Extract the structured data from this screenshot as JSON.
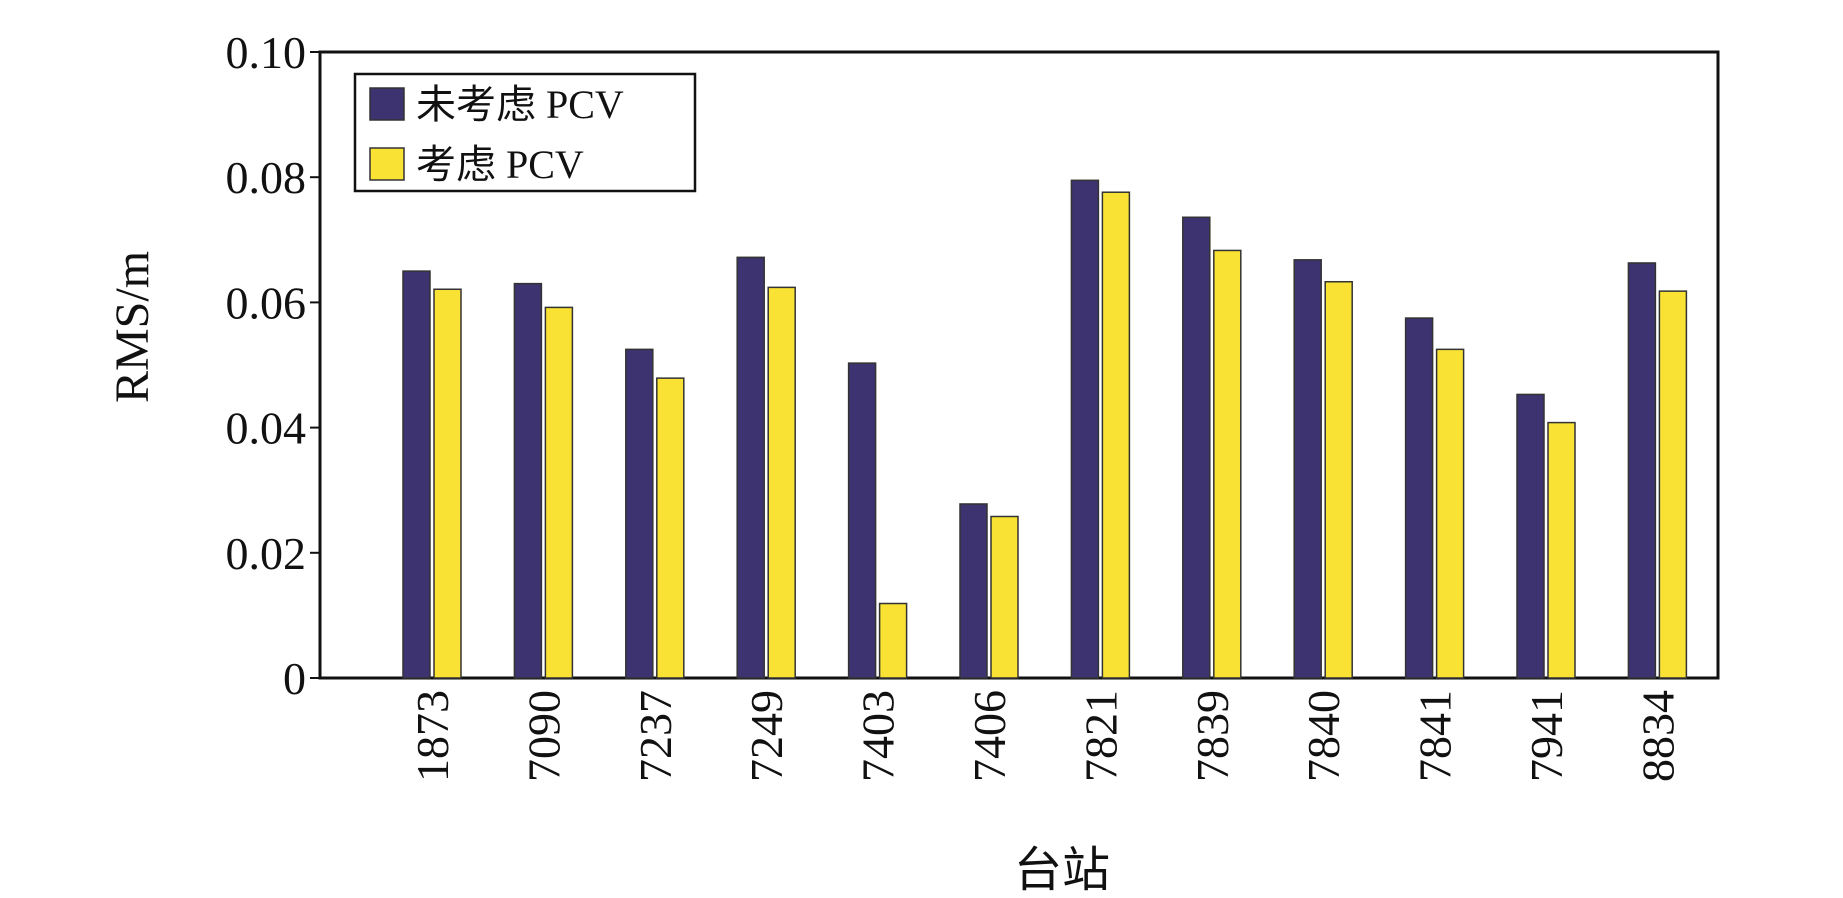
{
  "chart_data": {
    "type": "bar",
    "title": "",
    "xlabel": "台站",
    "ylabel": "RMS/m",
    "ylim": [
      0,
      0.1
    ],
    "yticks": [
      0,
      0.02,
      0.04,
      0.06,
      0.08,
      0.1
    ],
    "ytick_labels": [
      "0",
      "0.02",
      "0.04",
      "0.06",
      "0.08",
      "0.10"
    ],
    "categories": [
      "1873",
      "7090",
      "7237",
      "7249",
      "7403",
      "7406",
      "7821",
      "7839",
      "7840",
      "7841",
      "7941",
      "8834"
    ],
    "series": [
      {
        "name": "未考虑 PCV",
        "color": "#3d3370",
        "values": [
          0.065,
          0.063,
          0.0525,
          0.0672,
          0.0503,
          0.0278,
          0.0795,
          0.0736,
          0.0668,
          0.0575,
          0.0453,
          0.0663
        ]
      },
      {
        "name": "考虑 PCV",
        "color": "#f9e233",
        "values": [
          0.0621,
          0.0592,
          0.0479,
          0.0624,
          0.0119,
          0.0258,
          0.0776,
          0.0683,
          0.0633,
          0.0525,
          0.0408,
          0.0618
        ]
      }
    ],
    "legend_position": "top-left",
    "grid": false
  }
}
